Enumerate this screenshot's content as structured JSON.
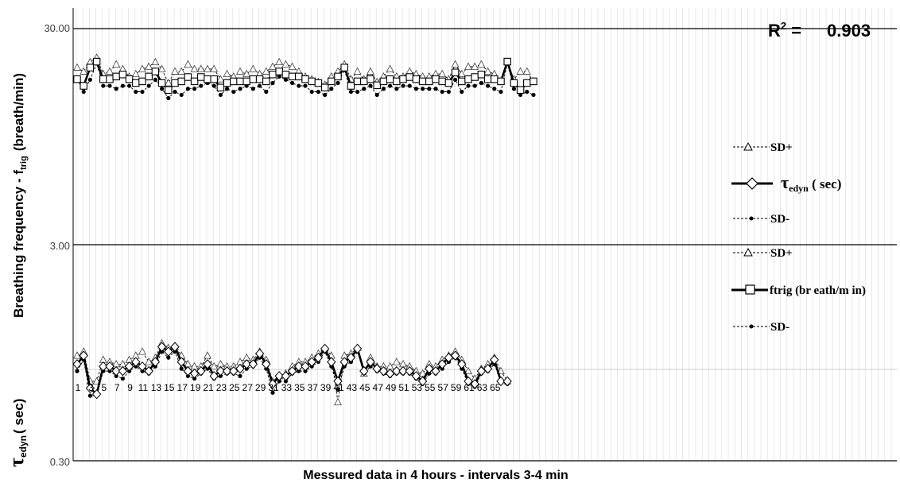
{
  "chart_data": {
    "type": "line",
    "xlabel": "Messured data in 4 hours  - intervals 3-4 min",
    "ylabel_upper": "Breathing frequency - f",
    "ylabel_upper_sub": "trig",
    "ylabel_upper_unit": "(breath/min)",
    "ylabel_lower": "τ",
    "ylabel_lower_sub": "edyn",
    "ylabel_lower_unit": "( sec)",
    "scale": "log",
    "ylim": [
      0.3,
      30
    ],
    "yticks": [
      "30.00",
      "3.00",
      "0.30"
    ],
    "yvalues": [
      30,
      3,
      0.3
    ],
    "grid": "vertical",
    "r2_label": "R",
    "r2_sup": "2",
    "r2_eq": " =",
    "r2_value": "0.903",
    "x_tick_labels": [
      "1",
      "3",
      "5",
      "7",
      "9",
      "11",
      "13",
      "15",
      "17",
      "19",
      "21",
      "23",
      "25",
      "27",
      "29",
      "31",
      "33",
      "35",
      "37",
      "39",
      "41",
      "43",
      "45",
      "47",
      "49",
      "51",
      "53",
      "55",
      "57",
      "59",
      "61",
      "63",
      "65"
    ],
    "legend": [
      {
        "text": "SD+"
      },
      {
        "text": "τ",
        "sub": "edyn",
        "rest": " ( sec)"
      },
      {
        "text": "SD-"
      },
      {
        "text": "SD+"
      },
      {
        "text": "ftrig (br eath/m in)"
      },
      {
        "text": "SD-"
      }
    ],
    "series": [
      {
        "key": "ftrig",
        "marker": "square",
        "values": [
          17.5,
          16.3,
          19.8,
          21.1,
          17.5,
          17.5,
          18,
          18.4,
          17.5,
          16.8,
          17.1,
          18,
          19,
          16.8,
          15.6,
          16.8,
          17.1,
          17.9,
          17.1,
          17.9,
          17.5,
          17.5,
          16,
          16.8,
          17.1,
          17.1,
          17.1,
          17.5,
          17.5,
          17.1,
          18.4,
          19,
          18.4,
          18,
          18,
          17.5,
          17.1,
          16.8,
          16,
          17.1,
          18,
          19.8,
          16.3,
          17.1,
          17.1,
          17.5,
          16.4,
          17.1,
          17.5,
          17.1,
          17.5,
          17.9,
          17.5,
          17.1,
          17.1,
          17.5,
          17.1,
          16.8,
          18.8,
          17.1,
          17.5,
          17.9,
          18.4,
          17.5,
          17.5,
          17.1,
          21.1,
          16.8,
          15.6,
          16.8,
          17.1
        ]
      },
      {
        "key": "ftrig_sd_plus",
        "marker": "triangle",
        "values": [
          19.8,
          19.0,
          21.0,
          22.0,
          18.5,
          19.0,
          20.5,
          19.5,
          18.0,
          18.5,
          19.5,
          20.0,
          21.0,
          19.5,
          16.8,
          19.0,
          19.0,
          20.5,
          19.5,
          19.5,
          19.5,
          19.5,
          17.5,
          18.5,
          18.0,
          19.0,
          18.5,
          19.5,
          18.5,
          19.0,
          20.0,
          21.0,
          20.5,
          20.0,
          19.0,
          18.0,
          17.5,
          17.0,
          16.5,
          18.0,
          19.0,
          20.5,
          17.5,
          19.0,
          17.5,
          19.0,
          17.0,
          18.0,
          19.5,
          18.0,
          18.0,
          19.0,
          18.5,
          18.0,
          18.0,
          18.5,
          18.5,
          17.5,
          20.5,
          18.5,
          20.0,
          20.0,
          20.5,
          19.0,
          18.5,
          17.0,
          21.0,
          17.5,
          19.0,
          19.0,
          17.0
        ]
      },
      {
        "key": "ftrig_sd_minus",
        "marker": "dot",
        "values": [
          17.6,
          15.3,
          17.4,
          20.7,
          16.3,
          16.3,
          15.8,
          16.3,
          16.3,
          15.3,
          15.3,
          16.3,
          17.4,
          15.8,
          14.3,
          15.3,
          14.8,
          15.8,
          15.8,
          16.3,
          16.8,
          16.3,
          14.8,
          15.8,
          15.3,
          15.8,
          16.3,
          15.8,
          16.3,
          15.3,
          16.8,
          18.0,
          17.4,
          16.8,
          16.3,
          16.3,
          15.3,
          15.3,
          14.8,
          15.8,
          16.8,
          19.3,
          15.3,
          15.3,
          15.8,
          16.3,
          14.8,
          15.8,
          16.3,
          15.8,
          16.3,
          16.3,
          15.8,
          15.8,
          15.8,
          15.8,
          15.3,
          15.3,
          17.4,
          15.3,
          16.3,
          16.3,
          16.8,
          16.3,
          15.8,
          15.3,
          20.7,
          15.8,
          14.8,
          15.3,
          14.8
        ]
      },
      {
        "key": "tau",
        "marker": "diamond",
        "values": [
          0.84,
          0.92,
          0.65,
          0.61,
          0.82,
          0.82,
          0.78,
          0.78,
          0.82,
          0.86,
          0.82,
          0.78,
          0.86,
          1.01,
          0.96,
          1.01,
          0.86,
          0.78,
          0.76,
          0.78,
          0.84,
          0.74,
          0.78,
          0.78,
          0.78,
          0.8,
          0.84,
          0.84,
          0.94,
          0.84,
          0.68,
          0.74,
          0.74,
          0.78,
          0.82,
          0.82,
          0.86,
          0.9,
          0.99,
          0.86,
          0.7,
          0.86,
          0.9,
          0.99,
          0.78,
          0.86,
          0.8,
          0.78,
          0.76,
          0.78,
          0.78,
          0.78,
          0.74,
          0.7,
          0.8,
          0.78,
          0.84,
          0.9,
          0.92,
          0.84,
          0.7,
          0.68,
          0.78,
          0.8,
          0.88,
          0.7,
          0.7
        ]
      },
      {
        "key": "tau_sd_plus",
        "marker": "triangle",
        "values": [
          0.92,
          0.96,
          0.7,
          0.7,
          0.88,
          0.86,
          0.84,
          0.84,
          0.88,
          0.92,
          0.96,
          0.86,
          0.9,
          1.05,
          1.0,
          1.01,
          0.92,
          0.84,
          0.82,
          0.82,
          0.92,
          0.82,
          0.84,
          0.82,
          0.82,
          0.86,
          0.9,
          0.88,
          0.96,
          0.88,
          0.7,
          0.74,
          0.76,
          0.82,
          0.86,
          0.86,
          0.9,
          0.94,
          1.0,
          0.92,
          0.56,
          0.92,
          0.94,
          1.0,
          0.76,
          0.9,
          0.82,
          0.82,
          0.82,
          0.86,
          0.84,
          0.82,
          0.78,
          0.76,
          0.84,
          0.82,
          0.88,
          0.92,
          0.96,
          0.88,
          0.78,
          0.72,
          0.8,
          0.84,
          0.9,
          0.78,
          0.7
        ]
      },
      {
        "key": "tau_sd_minus",
        "marker": "dot",
        "values": [
          0.78,
          0.88,
          0.6,
          0.6,
          0.78,
          0.78,
          0.74,
          0.72,
          0.78,
          0.82,
          0.78,
          0.76,
          0.82,
          0.96,
          0.9,
          0.96,
          0.8,
          0.74,
          0.72,
          0.76,
          0.8,
          0.72,
          0.74,
          0.76,
          0.76,
          0.74,
          0.8,
          0.82,
          0.9,
          0.8,
          0.62,
          0.7,
          0.7,
          0.76,
          0.78,
          0.78,
          0.82,
          0.86,
          0.96,
          0.82,
          0.64,
          0.82,
          0.86,
          0.96,
          0.76,
          0.82,
          0.78,
          0.76,
          0.74,
          0.76,
          0.76,
          0.76,
          0.72,
          0.68,
          0.76,
          0.76,
          0.8,
          0.86,
          0.9,
          0.8,
          0.68,
          0.66,
          0.76,
          0.78,
          0.84,
          0.7,
          0.68
        ]
      }
    ]
  },
  "colors": {
    "axis": "#000000",
    "grid": "#d9d9d9",
    "text": "#000000",
    "text_muted": "#404040"
  }
}
